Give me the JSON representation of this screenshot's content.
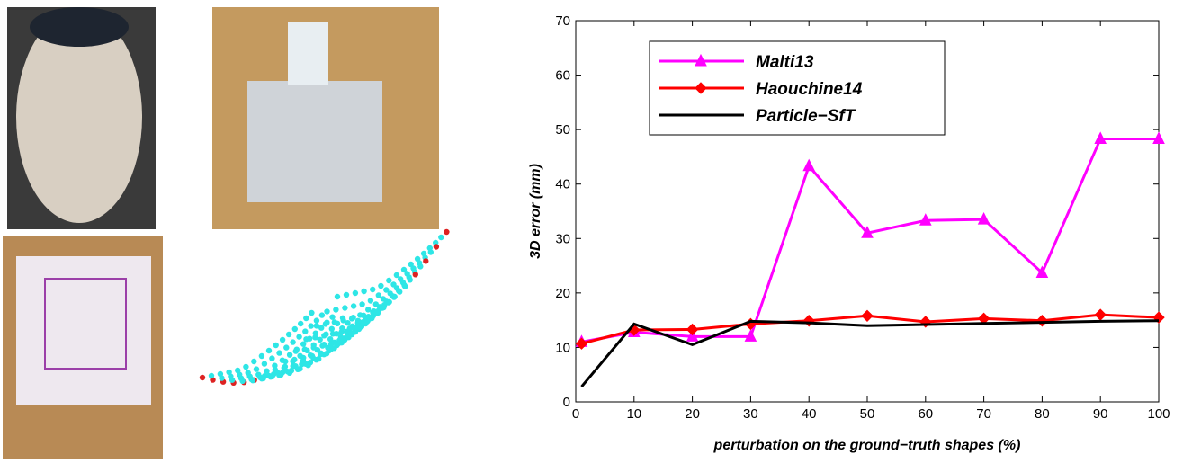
{
  "chart_data": {
    "type": "line",
    "xlabel": "perturbation on the ground−truth shapes  (%)",
    "ylabel": "3D error  (mm)",
    "x": [
      1,
      10,
      20,
      30,
      40,
      50,
      60,
      70,
      80,
      90,
      100
    ],
    "series": [
      {
        "name": "Malti13",
        "color": "#ff00ff",
        "marker": "triangle",
        "values": [
          11,
          12.8,
          12,
          12,
          43.3,
          31,
          33.3,
          33.5,
          23.7,
          48.3,
          48.3
        ]
      },
      {
        "name": "Haouchine14",
        "color": "#ff0000",
        "marker": "diamond",
        "values": [
          10.7,
          13.2,
          13.3,
          14.3,
          14.9,
          15.8,
          14.7,
          15.3,
          14.9,
          16,
          15.5
        ]
      },
      {
        "name": "Particle−SfT",
        "color": "#000000",
        "marker": "none",
        "values": [
          2.8,
          14.3,
          10.5,
          14.8,
          14.5,
          14,
          14.2,
          14.4,
          14.6,
          14.8,
          14.9
        ]
      }
    ],
    "xlim": [
      0,
      100
    ],
    "xticks": [
      0,
      10,
      20,
      30,
      40,
      50,
      60,
      70,
      80,
      90,
      100
    ],
    "ylim": [
      0,
      70
    ],
    "yticks": [
      0,
      10,
      20,
      30,
      40,
      50,
      60,
      70
    ],
    "legend_loc": "upper left",
    "grid": false
  }
}
